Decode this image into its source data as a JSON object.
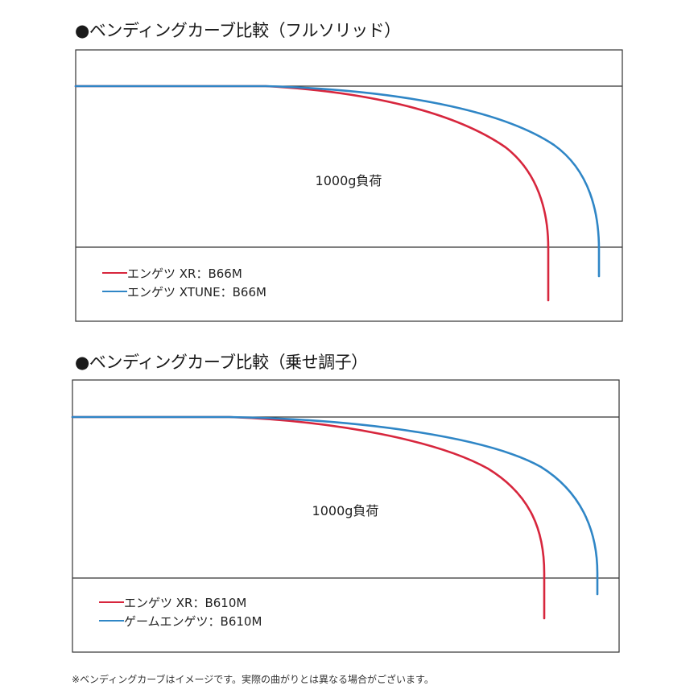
{
  "chart_data": [
    {
      "type": "line",
      "title": "●ベンディングカーブ比較（フルソリッド）",
      "annotation": "1000g負荷",
      "legend_placement": "bottom-left",
      "series": [
        {
          "name": "エンゲツ XR：B66M",
          "color": "#d7263d"
        },
        {
          "name": "エンゲツ XTUNE：B66M",
          "color": "#2f86c6"
        }
      ]
    },
    {
      "type": "line",
      "title": "●ベンディングカーブ比較（乗せ調子）",
      "annotation": "1000g負荷",
      "legend_placement": "bottom-left",
      "series": [
        {
          "name": "エンゲツ XR：B610M",
          "color": "#d7263d"
        },
        {
          "name": "ゲームエンゲツ：B610M",
          "color": "#2f86c6"
        }
      ]
    }
  ],
  "footnote": "※ベンディングカーブはイメージです。実際の曲がりとは異なる場合がございます。"
}
